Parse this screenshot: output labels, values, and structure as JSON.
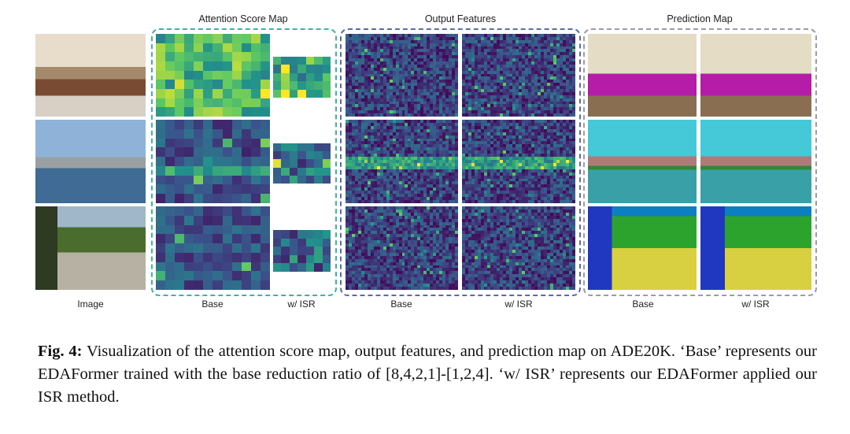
{
  "figure": {
    "headers": {
      "attention": "Attention Score Map",
      "output": "Output Features",
      "prediction": "Prediction Map"
    },
    "column_labels": {
      "image": "Image",
      "att_base": "Base",
      "att_isr": "w/ ISR",
      "out_base": "Base",
      "out_isr": "w/ ISR",
      "pred_base": "Base",
      "pred_isr": "w/ ISR"
    },
    "box_colors": {
      "attention": "#3bb3a5",
      "output": "#5b6aa8",
      "prediction": "#9a9aae"
    },
    "rows": [
      "bedroom",
      "city-waterfront",
      "street"
    ]
  },
  "caption": {
    "label": "Fig. 4:",
    "text": "Visualization of the attention score map, output features, and prediction map on ADE20K. ‘Base’ represents our EDAFormer trained with the base reduction ratio of [8,4,2,1]-[1,2,4]. ‘w/ ISR’ represents our EDAFormer applied our ISR method."
  }
}
